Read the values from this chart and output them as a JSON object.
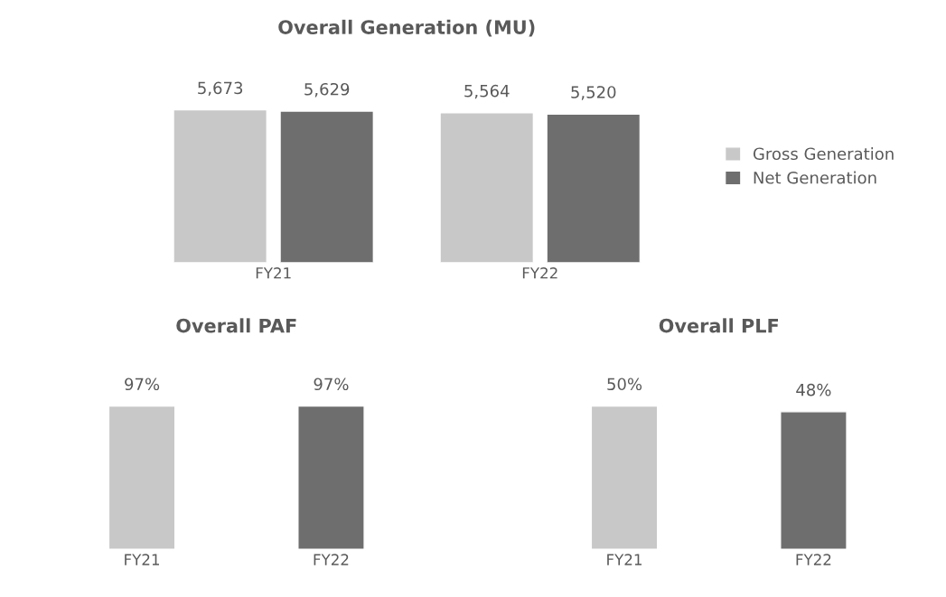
{
  "chart_data": [
    {
      "type": "bar",
      "title": "Overall Generation (MU)",
      "categories": [
        "FY21",
        "FY22"
      ],
      "series": [
        {
          "name": "Gross Generation",
          "color": "#c8c8c8",
          "values": [
            5673,
            5564
          ],
          "value_labels": [
            "5,673",
            "5,564"
          ]
        },
        {
          "name": "Net Generation",
          "color": "#6e6e6e",
          "values": [
            5629,
            5520
          ],
          "value_labels": [
            "5,629",
            "5,520"
          ]
        }
      ],
      "legend": "right",
      "tick_labels": "x"
    },
    {
      "type": "bar",
      "title": "Overall PAF",
      "categories": [
        "FY21",
        "FY22"
      ],
      "values": [
        97,
        97
      ],
      "colors": [
        "#c8c8c8",
        "#6e6e6e"
      ],
      "value_labels": [
        "97%",
        "97%"
      ],
      "tick_labels": "x"
    },
    {
      "type": "bar",
      "title": "Overall PLF",
      "categories": [
        "FY21",
        "FY22"
      ],
      "values": [
        50,
        48
      ],
      "colors": [
        "#c8c8c8",
        "#6e6e6e"
      ],
      "value_labels": [
        "50%",
        "48%"
      ],
      "tick_labels": "x"
    }
  ]
}
